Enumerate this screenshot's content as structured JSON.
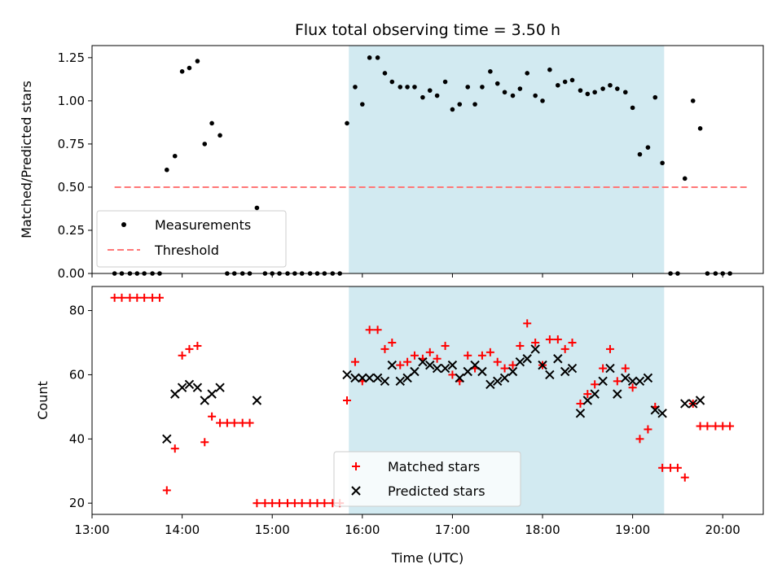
{
  "colors": {
    "measurement": "#000000",
    "threshold": "#ff7777",
    "matched": "#ff0000",
    "predicted": "#000000",
    "window": "#add8e6"
  },
  "chart_data": [
    {
      "type": "scatter",
      "title": "Flux total observing time = 3.50 h",
      "xlabel": "",
      "ylabel": "Matched/Predicted stars",
      "xlim": [
        13.0,
        20.45
      ],
      "ylim": [
        0.0,
        1.32
      ],
      "yticks": [
        0.0,
        0.25,
        0.5,
        0.75,
        1.0,
        1.25
      ],
      "ytick_labels": [
        "0.00",
        "0.25",
        "0.50",
        "0.75",
        "1.00",
        "1.25"
      ],
      "shaded_x_range": [
        15.85,
        19.35
      ],
      "threshold": {
        "name": "Threshold",
        "value": 0.5,
        "x_range": [
          13.25,
          20.3
        ]
      },
      "legend": [
        "Measurements",
        "Threshold"
      ],
      "series": [
        {
          "name": "Measurements",
          "points": [
            [
              13.25,
              0
            ],
            [
              13.33,
              0
            ],
            [
              13.42,
              0
            ],
            [
              13.5,
              0
            ],
            [
              13.58,
              0
            ],
            [
              13.67,
              0
            ],
            [
              13.75,
              0
            ],
            [
              13.83,
              0.6
            ],
            [
              13.92,
              0.68
            ],
            [
              14.0,
              1.17
            ],
            [
              14.08,
              1.19
            ],
            [
              14.17,
              1.23
            ],
            [
              14.25,
              0.75
            ],
            [
              14.33,
              0.87
            ],
            [
              14.42,
              0.8
            ],
            [
              14.5,
              0
            ],
            [
              14.58,
              0
            ],
            [
              14.67,
              0
            ],
            [
              14.75,
              0
            ],
            [
              14.83,
              0.38
            ],
            [
              14.92,
              0
            ],
            [
              15.0,
              0
            ],
            [
              15.08,
              0
            ],
            [
              15.17,
              0
            ],
            [
              15.25,
              0
            ],
            [
              15.33,
              0
            ],
            [
              15.42,
              0
            ],
            [
              15.5,
              0
            ],
            [
              15.58,
              0
            ],
            [
              15.67,
              0
            ],
            [
              15.75,
              0
            ],
            [
              15.83,
              0.87
            ],
            [
              15.92,
              1.08
            ],
            [
              16.0,
              0.98
            ],
            [
              16.08,
              1.25
            ],
            [
              16.17,
              1.25
            ],
            [
              16.25,
              1.16
            ],
            [
              16.33,
              1.11
            ],
            [
              16.42,
              1.08
            ],
            [
              16.5,
              1.08
            ],
            [
              16.58,
              1.08
            ],
            [
              16.67,
              1.02
            ],
            [
              16.75,
              1.06
            ],
            [
              16.83,
              1.03
            ],
            [
              16.92,
              1.11
            ],
            [
              17.0,
              0.95
            ],
            [
              17.08,
              0.98
            ],
            [
              17.17,
              1.08
            ],
            [
              17.25,
              0.98
            ],
            [
              17.33,
              1.08
            ],
            [
              17.42,
              1.17
            ],
            [
              17.5,
              1.1
            ],
            [
              17.58,
              1.05
            ],
            [
              17.67,
              1.03
            ],
            [
              17.75,
              1.07
            ],
            [
              17.83,
              1.16
            ],
            [
              17.92,
              1.03
            ],
            [
              18.0,
              1.0
            ],
            [
              18.08,
              1.18
            ],
            [
              18.17,
              1.09
            ],
            [
              18.25,
              1.11
            ],
            [
              18.33,
              1.12
            ],
            [
              18.42,
              1.06
            ],
            [
              18.5,
              1.04
            ],
            [
              18.58,
              1.05
            ],
            [
              18.67,
              1.07
            ],
            [
              18.75,
              1.09
            ],
            [
              18.83,
              1.07
            ],
            [
              18.92,
              1.05
            ],
            [
              19.0,
              0.96
            ],
            [
              19.08,
              0.69
            ],
            [
              19.17,
              0.73
            ],
            [
              19.25,
              1.02
            ],
            [
              19.33,
              0.64
            ],
            [
              19.42,
              0
            ],
            [
              19.5,
              0
            ],
            [
              19.58,
              0.55
            ],
            [
              19.67,
              1.0
            ],
            [
              19.75,
              0.84
            ],
            [
              19.83,
              0
            ],
            [
              19.92,
              0
            ],
            [
              20.0,
              0
            ],
            [
              20.08,
              0
            ]
          ]
        }
      ]
    },
    {
      "type": "scatter",
      "title": "",
      "xlabel": "Time (UTC)",
      "ylabel": "Count",
      "xlim": [
        13.0,
        20.45
      ],
      "ylim": [
        16.5,
        87.5
      ],
      "xticks": [
        13,
        14,
        15,
        16,
        17,
        18,
        19,
        20
      ],
      "xtick_labels": [
        "13:00",
        "14:00",
        "15:00",
        "16:00",
        "17:00",
        "18:00",
        "19:00",
        "20:00"
      ],
      "yticks": [
        20,
        40,
        60,
        80
      ],
      "ytick_labels": [
        "20",
        "40",
        "60",
        "80"
      ],
      "shaded_x_range": [
        15.85,
        19.35
      ],
      "legend": [
        "Matched stars",
        "Predicted stars"
      ],
      "series": [
        {
          "name": "Matched stars",
          "points": [
            [
              13.25,
              84
            ],
            [
              13.33,
              84
            ],
            [
              13.42,
              84
            ],
            [
              13.5,
              84
            ],
            [
              13.58,
              84
            ],
            [
              13.67,
              84
            ],
            [
              13.75,
              84
            ],
            [
              13.83,
              24
            ],
            [
              13.92,
              37
            ],
            [
              14.0,
              66
            ],
            [
              14.08,
              68
            ],
            [
              14.17,
              69
            ],
            [
              14.25,
              39
            ],
            [
              14.33,
              47
            ],
            [
              14.42,
              45
            ],
            [
              14.5,
              45
            ],
            [
              14.58,
              45
            ],
            [
              14.67,
              45
            ],
            [
              14.75,
              45
            ],
            [
              14.83,
              20
            ],
            [
              14.92,
              20
            ],
            [
              15.0,
              20
            ],
            [
              15.08,
              20
            ],
            [
              15.17,
              20
            ],
            [
              15.25,
              20
            ],
            [
              15.33,
              20
            ],
            [
              15.42,
              20
            ],
            [
              15.5,
              20
            ],
            [
              15.58,
              20
            ],
            [
              15.67,
              20
            ],
            [
              15.75,
              20
            ],
            [
              15.83,
              52
            ],
            [
              15.92,
              64
            ],
            [
              16.0,
              58
            ],
            [
              16.08,
              74
            ],
            [
              16.17,
              74
            ],
            [
              16.25,
              68
            ],
            [
              16.33,
              70
            ],
            [
              16.42,
              63
            ],
            [
              16.5,
              64
            ],
            [
              16.58,
              66
            ],
            [
              16.67,
              65
            ],
            [
              16.75,
              67
            ],
            [
              16.83,
              65
            ],
            [
              16.92,
              69
            ],
            [
              17.0,
              60
            ],
            [
              17.08,
              58
            ],
            [
              17.17,
              66
            ],
            [
              17.25,
              62
            ],
            [
              17.33,
              66
            ],
            [
              17.42,
              67
            ],
            [
              17.5,
              64
            ],
            [
              17.58,
              62
            ],
            [
              17.67,
              63
            ],
            [
              17.75,
              69
            ],
            [
              17.83,
              76
            ],
            [
              17.92,
              70
            ],
            [
              18.0,
              63
            ],
            [
              18.08,
              71
            ],
            [
              18.17,
              71
            ],
            [
              18.25,
              68
            ],
            [
              18.33,
              70
            ],
            [
              18.42,
              51
            ],
            [
              18.5,
              54
            ],
            [
              18.58,
              57
            ],
            [
              18.67,
              62
            ],
            [
              18.75,
              68
            ],
            [
              18.83,
              58
            ],
            [
              18.92,
              62
            ],
            [
              19.0,
              56
            ],
            [
              19.08,
              40
            ],
            [
              19.17,
              43
            ],
            [
              19.25,
              50
            ],
            [
              19.33,
              31
            ],
            [
              19.42,
              31
            ],
            [
              19.5,
              31
            ],
            [
              19.58,
              28
            ],
            [
              19.67,
              51
            ],
            [
              19.75,
              44
            ],
            [
              19.83,
              44
            ],
            [
              19.92,
              44
            ],
            [
              20.0,
              44
            ],
            [
              20.08,
              44
            ]
          ]
        },
        {
          "name": "Predicted stars",
          "points": [
            [
              13.83,
              40
            ],
            [
              13.92,
              54
            ],
            [
              14.0,
              56
            ],
            [
              14.08,
              57
            ],
            [
              14.17,
              56
            ],
            [
              14.25,
              52
            ],
            [
              14.33,
              54
            ],
            [
              14.42,
              56
            ],
            [
              14.83,
              52
            ],
            [
              15.83,
              60
            ],
            [
              15.92,
              59
            ],
            [
              16.0,
              59
            ],
            [
              16.08,
              59
            ],
            [
              16.17,
              59
            ],
            [
              16.25,
              58
            ],
            [
              16.33,
              63
            ],
            [
              16.42,
              58
            ],
            [
              16.5,
              59
            ],
            [
              16.58,
              61
            ],
            [
              16.67,
              64
            ],
            [
              16.75,
              63
            ],
            [
              16.83,
              62
            ],
            [
              16.92,
              62
            ],
            [
              17.0,
              63
            ],
            [
              17.08,
              59
            ],
            [
              17.17,
              61
            ],
            [
              17.25,
              63
            ],
            [
              17.33,
              61
            ],
            [
              17.42,
              57
            ],
            [
              17.5,
              58
            ],
            [
              17.58,
              59
            ],
            [
              17.67,
              61
            ],
            [
              17.75,
              64
            ],
            [
              17.83,
              65
            ],
            [
              17.92,
              68
            ],
            [
              18.0,
              63
            ],
            [
              18.08,
              60
            ],
            [
              18.17,
              65
            ],
            [
              18.25,
              61
            ],
            [
              18.33,
              62
            ],
            [
              18.42,
              48
            ],
            [
              18.5,
              52
            ],
            [
              18.58,
              54
            ],
            [
              18.67,
              58
            ],
            [
              18.75,
              62
            ],
            [
              18.83,
              54
            ],
            [
              18.92,
              59
            ],
            [
              19.0,
              58
            ],
            [
              19.08,
              58
            ],
            [
              19.17,
              59
            ],
            [
              19.25,
              49
            ],
            [
              19.33,
              48
            ],
            [
              19.58,
              51
            ],
            [
              19.67,
              51
            ],
            [
              19.75,
              52
            ]
          ]
        }
      ]
    }
  ]
}
